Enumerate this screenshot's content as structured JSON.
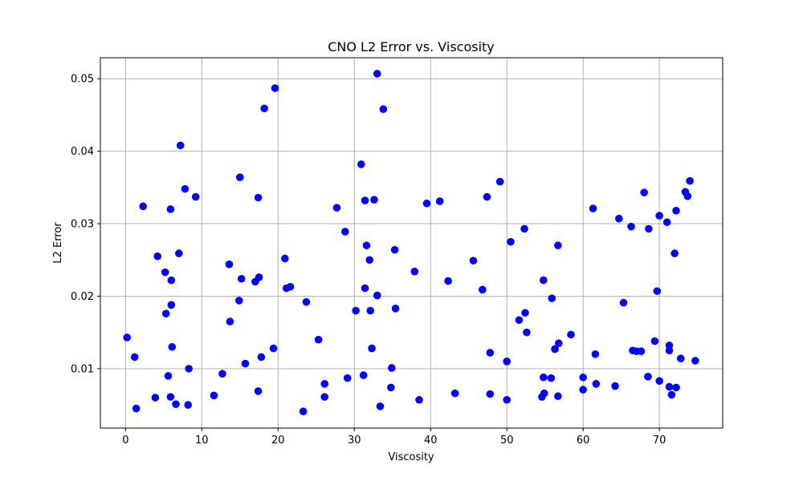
{
  "chart_data": {
    "type": "scatter",
    "title": "CNO L2 Error vs. Viscosity",
    "xlabel": "Viscosity",
    "ylabel": "L2 Error",
    "xlim": [
      -3.3,
      78.3
    ],
    "ylim": [
      0.0018,
      0.0529
    ],
    "xticks": [
      0,
      10,
      20,
      30,
      40,
      50,
      60,
      70
    ],
    "yticks": [
      0.01,
      0.02,
      0.03,
      0.04,
      0.05
    ],
    "ytick_labels": [
      "0.01",
      "0.02",
      "0.03",
      "0.04",
      "0.05"
    ],
    "grid": true,
    "legend": "none",
    "marker_color": "#0000ff",
    "points": [
      [
        0.2,
        0.0143
      ],
      [
        1.2,
        0.0116
      ],
      [
        1.4,
        0.0045
      ],
      [
        2.3,
        0.0324
      ],
      [
        3.9,
        0.006
      ],
      [
        4.2,
        0.0255
      ],
      [
        5.2,
        0.0233
      ],
      [
        5.3,
        0.0176
      ],
      [
        5.6,
        0.009
      ],
      [
        5.9,
        0.0061
      ],
      [
        6.0,
        0.0188
      ],
      [
        6.0,
        0.0222
      ],
      [
        5.9,
        0.032
      ],
      [
        6.1,
        0.013
      ],
      [
        6.6,
        0.0051
      ],
      [
        7.0,
        0.0259
      ],
      [
        7.2,
        0.0408
      ],
      [
        7.8,
        0.0348
      ],
      [
        8.2,
        0.005
      ],
      [
        8.3,
        0.01
      ],
      [
        9.2,
        0.0337
      ],
      [
        11.6,
        0.0063
      ],
      [
        12.7,
        0.0093
      ],
      [
        13.6,
        0.0244
      ],
      [
        13.7,
        0.0165
      ],
      [
        14.9,
        0.0194
      ],
      [
        15.0,
        0.0364
      ],
      [
        15.2,
        0.0224
      ],
      [
        15.7,
        0.0107
      ],
      [
        17.0,
        0.022
      ],
      [
        17.4,
        0.0336
      ],
      [
        17.4,
        0.0069
      ],
      [
        17.5,
        0.0226
      ],
      [
        17.8,
        0.0116
      ],
      [
        18.2,
        0.0459
      ],
      [
        19.4,
        0.0128
      ],
      [
        19.6,
        0.0487
      ],
      [
        20.9,
        0.0252
      ],
      [
        21.1,
        0.0211
      ],
      [
        21.6,
        0.0213
      ],
      [
        23.3,
        0.0041
      ],
      [
        23.7,
        0.0192
      ],
      [
        25.3,
        0.014
      ],
      [
        26.1,
        0.0061
      ],
      [
        26.1,
        0.0079
      ],
      [
        27.7,
        0.0322
      ],
      [
        28.8,
        0.0289
      ],
      [
        29.1,
        0.0087
      ],
      [
        30.2,
        0.018
      ],
      [
        30.9,
        0.0382
      ],
      [
        31.2,
        0.0091
      ],
      [
        31.4,
        0.0211
      ],
      [
        31.4,
        0.0332
      ],
      [
        31.6,
        0.027
      ],
      [
        32.0,
        0.025
      ],
      [
        32.1,
        0.018
      ],
      [
        32.3,
        0.0128
      ],
      [
        32.6,
        0.0333
      ],
      [
        33.0,
        0.0201
      ],
      [
        33.0,
        0.0507
      ],
      [
        33.4,
        0.0048
      ],
      [
        33.8,
        0.0458
      ],
      [
        34.8,
        0.0074
      ],
      [
        34.9,
        0.0101
      ],
      [
        35.3,
        0.0264
      ],
      [
        35.4,
        0.0183
      ],
      [
        37.9,
        0.0234
      ],
      [
        38.5,
        0.0057
      ],
      [
        39.5,
        0.0328
      ],
      [
        41.2,
        0.0331
      ],
      [
        42.3,
        0.0221
      ],
      [
        43.2,
        0.0066
      ],
      [
        45.6,
        0.0249
      ],
      [
        46.8,
        0.0209
      ],
      [
        47.4,
        0.0337
      ],
      [
        47.8,
        0.0065
      ],
      [
        47.8,
        0.0122
      ],
      [
        49.1,
        0.0358
      ],
      [
        50.0,
        0.0057
      ],
      [
        50.0,
        0.011
      ],
      [
        50.5,
        0.0275
      ],
      [
        51.6,
        0.0167
      ],
      [
        52.3,
        0.0293
      ],
      [
        52.4,
        0.0177
      ],
      [
        52.6,
        0.015
      ],
      [
        54.6,
        0.0061
      ],
      [
        54.8,
        0.0088
      ],
      [
        54.8,
        0.0222
      ],
      [
        54.9,
        0.0066
      ],
      [
        55.8,
        0.0087
      ],
      [
        55.9,
        0.0197
      ],
      [
        56.3,
        0.0127
      ],
      [
        56.7,
        0.0062
      ],
      [
        56.7,
        0.027
      ],
      [
        56.8,
        0.0135
      ],
      [
        58.4,
        0.0147
      ],
      [
        60.0,
        0.0071
      ],
      [
        60.0,
        0.0088
      ],
      [
        61.3,
        0.0321
      ],
      [
        61.6,
        0.012
      ],
      [
        61.7,
        0.0079
      ],
      [
        64.2,
        0.0076
      ],
      [
        64.7,
        0.0307
      ],
      [
        65.3,
        0.0191
      ],
      [
        66.3,
        0.0296
      ],
      [
        66.5,
        0.0125
      ],
      [
        67.0,
        0.0124
      ],
      [
        67.6,
        0.0124
      ],
      [
        68.0,
        0.0343
      ],
      [
        68.5,
        0.0089
      ],
      [
        68.6,
        0.0293
      ],
      [
        69.4,
        0.0138
      ],
      [
        69.7,
        0.0207
      ],
      [
        70.0,
        0.0083
      ],
      [
        70.0,
        0.0311
      ],
      [
        71.0,
        0.0302
      ],
      [
        71.3,
        0.0125
      ],
      [
        71.3,
        0.0132
      ],
      [
        71.3,
        0.0075
      ],
      [
        71.6,
        0.0064
      ],
      [
        72.0,
        0.0259
      ],
      [
        72.2,
        0.0318
      ],
      [
        72.2,
        0.0074
      ],
      [
        72.8,
        0.0114
      ],
      [
        73.4,
        0.0344
      ],
      [
        73.7,
        0.0338
      ],
      [
        74.0,
        0.0359
      ],
      [
        74.7,
        0.0111
      ]
    ]
  }
}
